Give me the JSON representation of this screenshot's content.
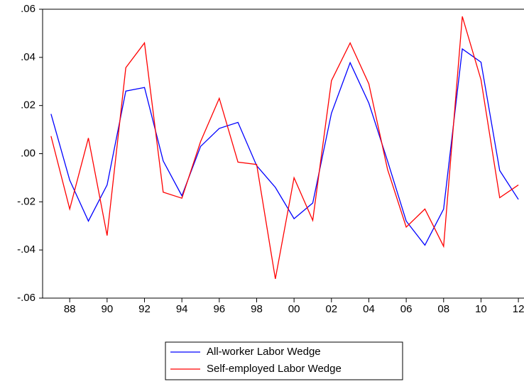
{
  "chart_data": {
    "type": "line",
    "x": [
      1987,
      1988,
      1989,
      1990,
      1991,
      1992,
      1993,
      1994,
      1995,
      1996,
      1997,
      1998,
      1999,
      2000,
      2001,
      2002,
      2003,
      2004,
      2005,
      2006,
      2007,
      2008,
      2009,
      2010,
      2011,
      2012
    ],
    "series": [
      {
        "name": "All-worker Labor Wedge",
        "color": "#0000ff",
        "values": [
          0.0165,
          -0.011,
          -0.028,
          -0.013,
          0.026,
          0.0275,
          -0.003,
          -0.0175,
          0.003,
          0.0105,
          0.013,
          -0.005,
          -0.014,
          -0.027,
          -0.0205,
          0.0168,
          0.0378,
          0.021,
          -0.003,
          -0.028,
          -0.038,
          -0.023,
          0.0435,
          0.038,
          -0.007,
          -0.019
        ]
      },
      {
        "name": "Self-employed Labor Wedge",
        "color": "#ff0000",
        "values": [
          0.0073,
          -0.023,
          0.0065,
          -0.034,
          0.0357,
          0.046,
          -0.016,
          -0.0185,
          0.005,
          0.023,
          -0.0035,
          -0.0045,
          -0.052,
          -0.01,
          -0.0277,
          0.0303,
          0.046,
          0.029,
          -0.0065,
          -0.0305,
          -0.023,
          -0.0385,
          0.057,
          0.0307,
          -0.0183,
          -0.013
        ]
      }
    ],
    "xlim": [
      1986.55,
      2012.3
    ],
    "xticks": [
      {
        "value": 1988,
        "label": "88"
      },
      {
        "value": 1990,
        "label": "90"
      },
      {
        "value": 1992,
        "label": "92"
      },
      {
        "value": 1994,
        "label": "94"
      },
      {
        "value": 1996,
        "label": "96"
      },
      {
        "value": 1998,
        "label": "98"
      },
      {
        "value": 2000,
        "label": "00"
      },
      {
        "value": 2002,
        "label": "02"
      },
      {
        "value": 2004,
        "label": "04"
      },
      {
        "value": 2006,
        "label": "06"
      },
      {
        "value": 2008,
        "label": "08"
      },
      {
        "value": 2010,
        "label": "10"
      },
      {
        "value": 2012,
        "label": "12"
      }
    ],
    "ylim": [
      -0.06,
      0.06
    ],
    "yticks": [
      {
        "value": -0.06,
        "label": "-.06"
      },
      {
        "value": -0.04,
        "label": "-.04"
      },
      {
        "value": -0.02,
        "label": "-.02"
      },
      {
        "value": 0,
        "label": ".00"
      },
      {
        "value": 0.02,
        "label": ".02"
      },
      {
        "value": 0.04,
        "label": ".04"
      },
      {
        "value": 0.06,
        "label": ".06"
      }
    ],
    "legend": "bottom"
  }
}
